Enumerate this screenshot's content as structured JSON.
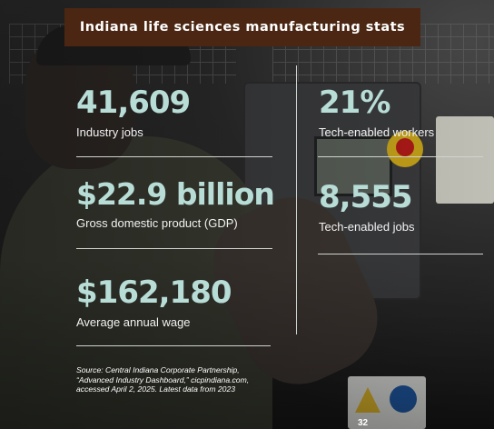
{
  "header": {
    "title": "Indiana life sciences manufacturing stats"
  },
  "stats": [
    {
      "value": "41,609",
      "label": "Industry jobs"
    },
    {
      "value": "$22.9 billion",
      "label": "Gross domestic product (GDP)"
    },
    {
      "value": "$162,180",
      "label": "Average annual wage"
    },
    {
      "value": "21%",
      "label": "Tech-enabled workers"
    },
    {
      "value": "8,555",
      "label": "Tech-enabled jobs"
    }
  ],
  "source": "Source: Central Indiana Corporate Partnership, “Advanced Industry Dashboard,” cicpindiana.com, accessed April 2, 2025. Latest data from 2023",
  "page_number": "32",
  "colors": {
    "title_bar": "#4b2713",
    "stat_value": "#b8ddd7",
    "text": "#f2f2f2",
    "divider": "#cfd3cf"
  }
}
